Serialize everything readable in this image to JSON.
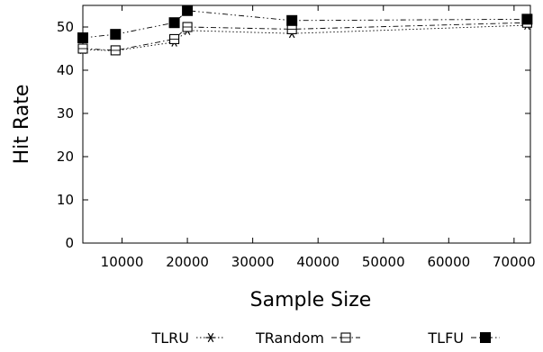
{
  "chart_data": {
    "type": "line",
    "xlabel": "Sample Size",
    "ylabel": "Hit Rate",
    "xlim": [
      4000,
      72500
    ],
    "ylim": [
      0,
      55
    ],
    "xticks": [
      10000,
      20000,
      30000,
      40000,
      50000,
      60000,
      70000
    ],
    "yticks": [
      0,
      10,
      20,
      30,
      40,
      50
    ],
    "grid": false,
    "legend_position": "bottom",
    "series": [
      {
        "name": "TLRU",
        "marker": "asterisk",
        "line_style": "dotted",
        "color": "#000000",
        "x": [
          4000,
          9000,
          18000,
          20000,
          36000,
          72000
        ],
        "y": [
          44.8,
          44.5,
          46.5,
          49.2,
          48.5,
          50.4
        ]
      },
      {
        "name": "TRandom",
        "marker": "open-square",
        "line_style": "dash-dot",
        "color": "#000000",
        "x": [
          4000,
          9000,
          18000,
          20000,
          36000,
          72000
        ],
        "y": [
          45.0,
          44.6,
          47.2,
          50.0,
          49.5,
          51.0
        ]
      },
      {
        "name": "TLFU",
        "marker": "filled-square",
        "line_style": "dash-dot-dot",
        "color": "#000000",
        "x": [
          4000,
          9000,
          18000,
          20000,
          36000,
          72000
        ],
        "y": [
          47.5,
          48.3,
          51.0,
          53.8,
          51.5,
          51.8
        ]
      }
    ]
  }
}
